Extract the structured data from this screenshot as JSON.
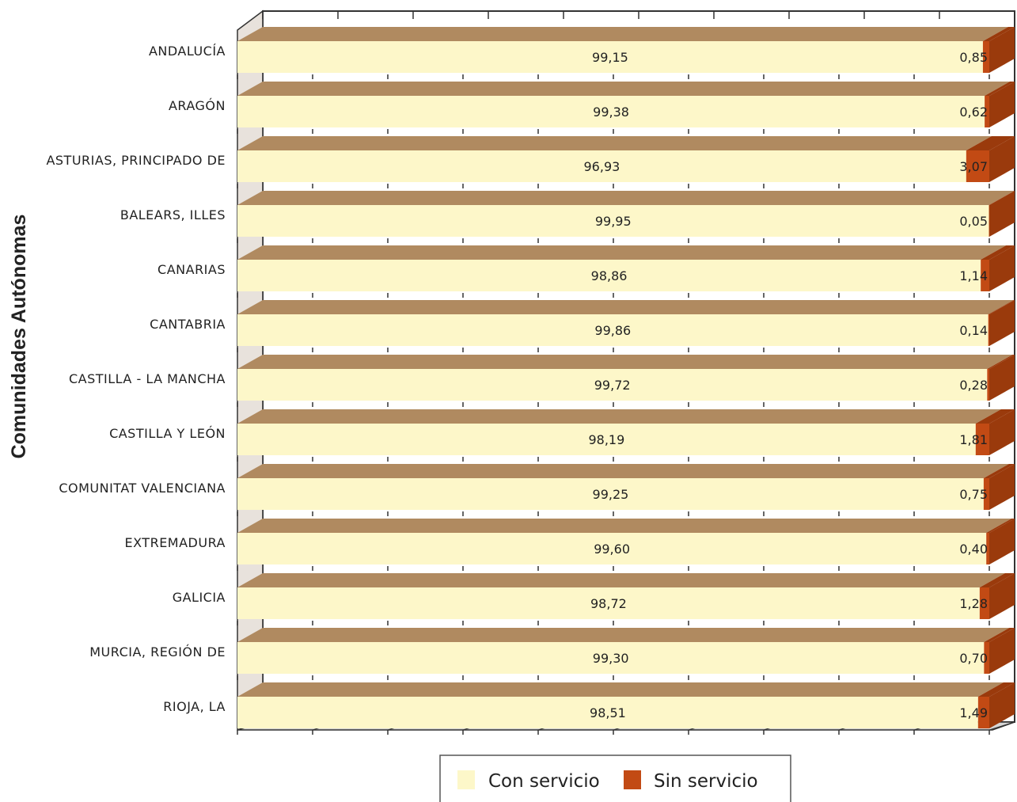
{
  "chart_data": {
    "type": "bar",
    "orientation": "horizontal",
    "stacked": true,
    "three_d": true,
    "ylabel": "Comunidades Autónomas",
    "xlim": [
      0,
      100
    ],
    "categories": [
      "ANDALUCÍA",
      "ARAGÓN",
      "ASTURIAS, PRINCIPADO DE",
      "BALEARS, ILLES",
      "CANARIAS",
      "CANTABRIA",
      "CASTILLA - LA MANCHA",
      "CASTILLA Y LEÓN",
      "COMUNITAT VALENCIANA",
      "EXTREMADURA",
      "GALICIA",
      "MURCIA, REGIÓN DE",
      "RIOJA, LA"
    ],
    "series": [
      {
        "name": "Con servicio",
        "color": "#fdf7c9",
        "values": [
          99.15,
          99.38,
          96.93,
          99.95,
          98.86,
          99.86,
          99.72,
          98.19,
          99.25,
          99.6,
          98.72,
          99.3,
          98.51
        ],
        "labels": [
          "99,15",
          "99,38",
          "96,93",
          "99,95",
          "98,86",
          "99,86",
          "99,72",
          "98,19",
          "99,25",
          "99,60",
          "98,72",
          "99,30",
          "98,51"
        ]
      },
      {
        "name": "Sin servicio",
        "color": "#c24a14",
        "values": [
          0.85,
          0.62,
          3.07,
          0.05,
          1.14,
          0.14,
          0.28,
          1.81,
          0.75,
          0.4,
          1.28,
          0.7,
          1.49
        ],
        "labels": [
          "0,85",
          "0,62",
          "3,07",
          "0,05",
          "1,14",
          "0,14",
          "0,28",
          "1,81",
          "0,75",
          "0,40",
          "1,28",
          "0,70",
          "1,49"
        ]
      }
    ],
    "grid": false,
    "legend_position": "bottom"
  }
}
